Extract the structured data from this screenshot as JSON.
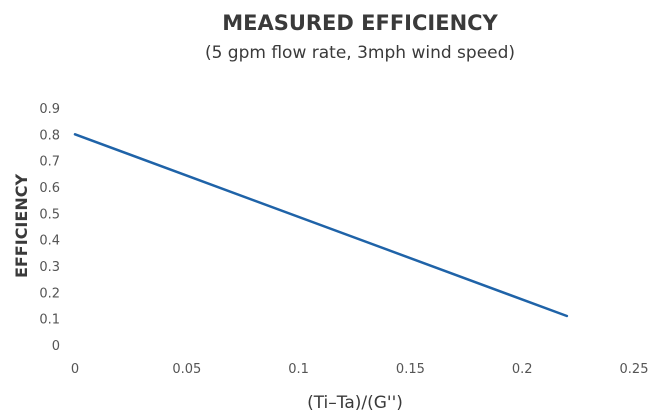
{
  "chart_data": {
    "type": "line",
    "title": "MEASURED EFFICIENCY",
    "subtitle": "(5 gpm flow rate, 3mph wind speed)",
    "xlabel": "(Ti–Ta)/(G'')",
    "ylabel": "EFFICIENCY",
    "xlim": [
      0,
      0.25
    ],
    "ylim": [
      0,
      0.9
    ],
    "x_ticks": [
      "0",
      "0.05",
      "0.1",
      "0.15",
      "0.2",
      "0.25"
    ],
    "y_ticks": [
      "0",
      "0.1",
      "0.2",
      "0.3",
      "0.4",
      "0.5",
      "0.6",
      "0.7",
      "0.8",
      "0.9"
    ],
    "grid": false,
    "series": [
      {
        "x": [
          0,
          0.22
        ],
        "y": [
          0.8,
          0.11
        ],
        "color": "#1f63a8"
      }
    ]
  }
}
